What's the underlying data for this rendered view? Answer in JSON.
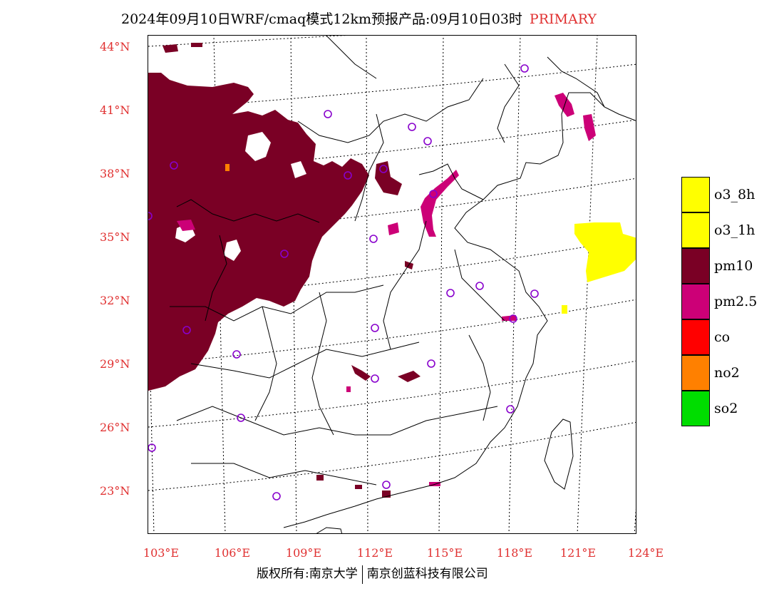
{
  "header": {
    "title": "2024年09月10日WRF/cmaq模式12km预报产品:09月10日03时",
    "tag": "PRIMARY"
  },
  "axes": {
    "lat_labels": [
      "44°N",
      "41°N",
      "38°N",
      "35°N",
      "32°N",
      "29°N",
      "26°N",
      "23°N"
    ],
    "lon_labels": [
      "103°E",
      "106°E",
      "109°E",
      "112°E",
      "115°E",
      "118°E",
      "121°E",
      "124°E"
    ]
  },
  "legend": {
    "items": [
      {
        "label": "o3_8h",
        "color": "#ffff00"
      },
      {
        "label": "o3_1h",
        "color": "#ffff00"
      },
      {
        "label": "pm10",
        "color": "#7a0025"
      },
      {
        "label": "pm2.5",
        "color": "#cc0077"
      },
      {
        "label": "co",
        "color": "#ff0000"
      },
      {
        "label": "no2",
        "color": "#ff8000"
      },
      {
        "label": "so2",
        "color": "#00dd00"
      }
    ]
  },
  "footer": {
    "copyright": "版权所有:南京大学",
    "company": "南京创蓝科技有限公司"
  },
  "colors": {
    "pm10": "#7a0025",
    "pm25": "#cc0077",
    "o3": "#ffff00",
    "station": "#8800cc",
    "axis_label": "#e03030"
  }
}
